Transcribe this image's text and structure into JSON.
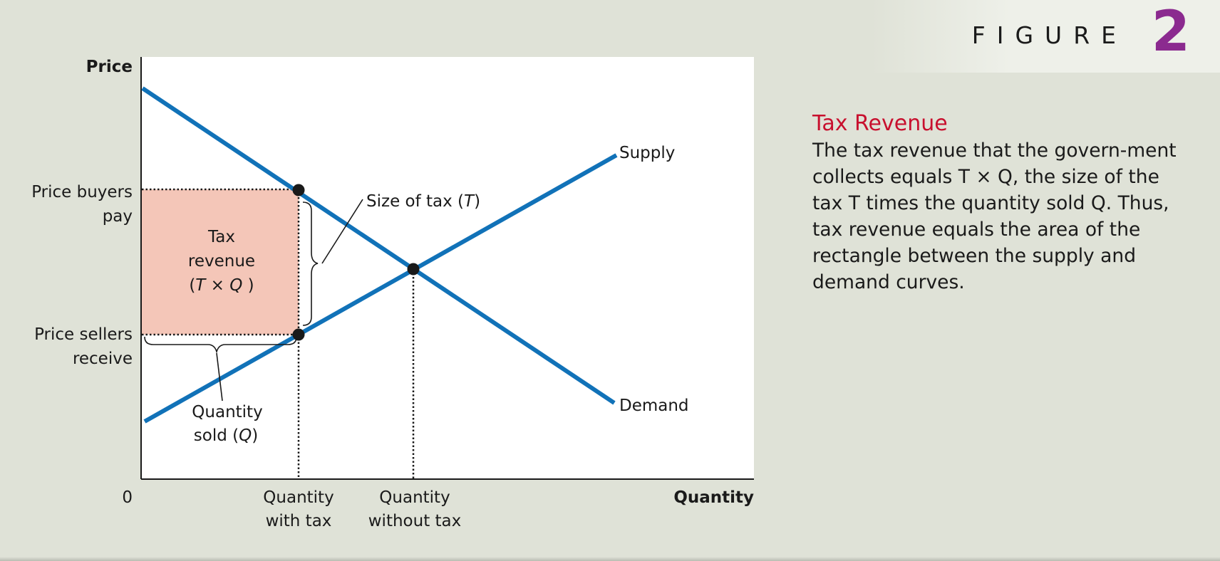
{
  "figure": {
    "label": "FIGURE",
    "number": "2"
  },
  "caption": {
    "title": "Tax Revenue",
    "body": "The tax revenue that the govern-ment collects equals T × Q, the size of the tax T times the quantity sold Q. Thus, tax revenue equals the area of the rectangle between the supply and demand curves."
  },
  "chart_data": {
    "type": "line",
    "axes": {
      "x_label": "Quantity",
      "y_label": "Price",
      "origin_label": "0"
    },
    "curves": {
      "supply_label": "Supply",
      "demand_label": "Demand"
    },
    "price_labels": {
      "buyers_line1": "Price buyers",
      "buyers_line2": "pay",
      "sellers_line1": "Price sellers",
      "sellers_line2": "receive"
    },
    "quantity_labels": {
      "with_tax_line1": "Quantity",
      "with_tax_line2": "with tax",
      "without_tax_line1": "Quantity",
      "without_tax_line2": "without tax"
    },
    "annotations": {
      "tax_revenue_line1": "Tax",
      "tax_revenue_line2": "revenue",
      "tax_revenue_line3_open": "(",
      "tax_revenue_line3_T": "T",
      "tax_revenue_line3_times": " × ",
      "tax_revenue_line3_Q": "Q",
      "tax_revenue_line3_close": " )",
      "size_of_tax_text": "Size of tax (",
      "size_of_tax_T": "T",
      "size_of_tax_close": ")",
      "qty_sold_line1": "Quantity",
      "qty_sold_line2_text": "sold (",
      "qty_sold_line2_Q": "Q",
      "qty_sold_line2_close": ")"
    },
    "colors": {
      "curves": "#1172b8",
      "tax_area": "#f4c6b8",
      "plot_bg": "#ffffff",
      "title": "#c8102e",
      "figure_number": "#8b2a8f"
    }
  }
}
